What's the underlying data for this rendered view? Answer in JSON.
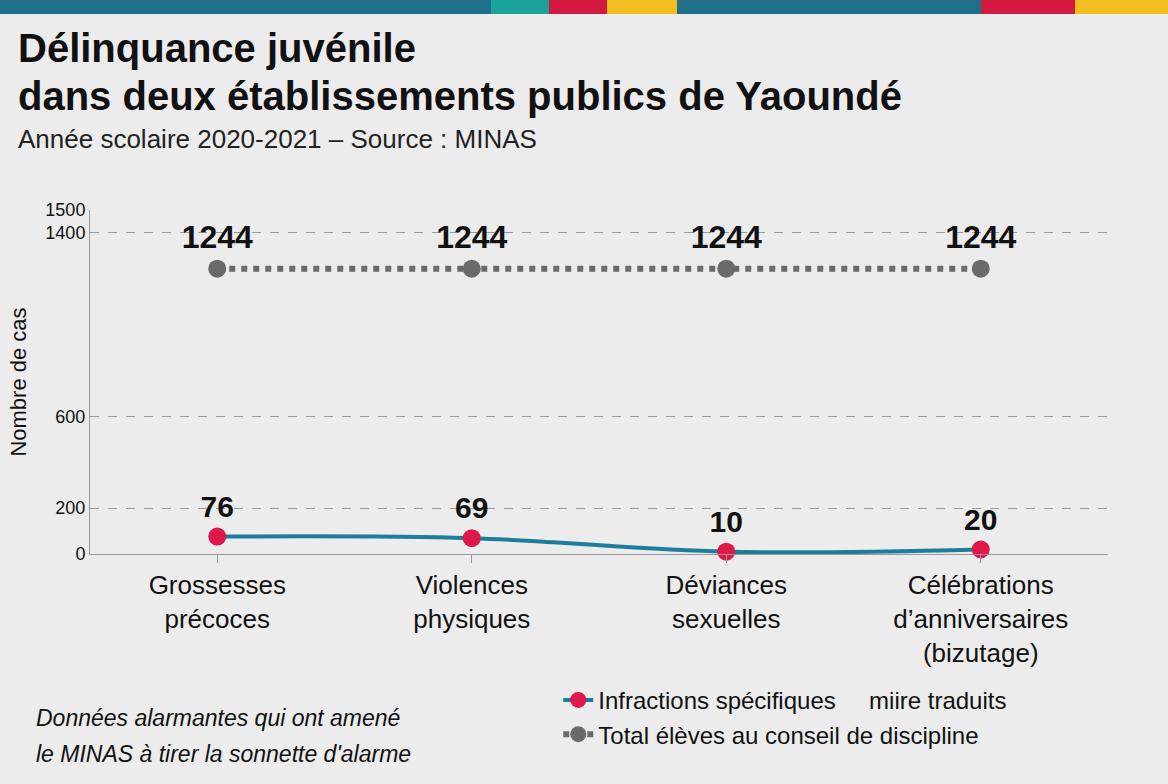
{
  "chart_data": {
    "type": "line",
    "title": [
      "Délinquance juvénile",
      "dans deux établissements publics de Yaoundé"
    ],
    "subtitle": "Année scolaire 2020-2021 – Source : MINAS",
    "y_label": "Nombre de cas",
    "note": [
      "Données alarmantes qui ont amené",
      "le MINAS à tirer la sonnette d'alarme"
    ],
    "categories": [
      "Grossesses précoces",
      "Violences physiques",
      "Déviances sexuelles",
      "Célébrations d’anniversaires (bizutage)"
    ],
    "series": [
      {
        "name": "Infractions spécifiques     miire traduits",
        "color": "#1d7d9c",
        "marker_color": "#e0174a",
        "marker": "circle",
        "line_style": "solid",
        "values": [
          76,
          69,
          10,
          20
        ]
      },
      {
        "name": "Total élèves au conseil de discipline",
        "color": "#6a6a6a",
        "marker_color": "#6a6a6a",
        "marker": "circle",
        "line_style": "dotted",
        "values": [
          1244,
          1244,
          1244,
          1244
        ]
      }
    ],
    "ylim": [
      0,
      1500
    ],
    "yticks": [
      0,
      200,
      600,
      1400,
      1500
    ],
    "grid": true,
    "data_labels": true,
    "legend": "bottom right"
  }
}
